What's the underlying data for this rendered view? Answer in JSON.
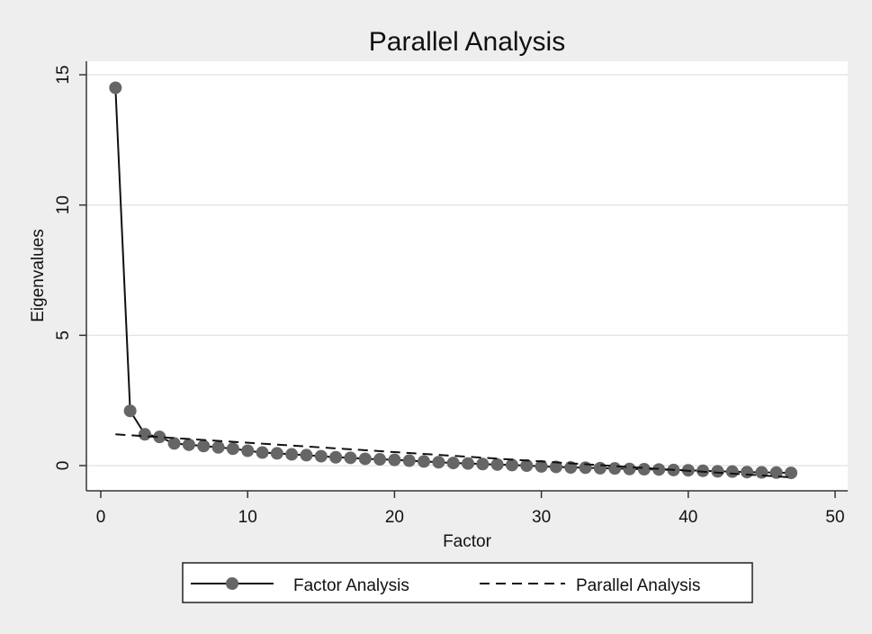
{
  "chart_data": {
    "type": "line",
    "title": "Parallel Analysis",
    "xlabel": "Factor",
    "ylabel": "Eigenvalues",
    "xlim": [
      0,
      50
    ],
    "ylim": [
      -1,
      15.5
    ],
    "xticks": [
      0,
      10,
      20,
      30,
      40,
      50
    ],
    "yticks": [
      0,
      5,
      10,
      15
    ],
    "grid": "horizontal",
    "legend_position": "bottom",
    "colors": {
      "background": "#eeeeee",
      "plot_background": "#ffffff",
      "marker": "#666666",
      "line": "#111111",
      "grid": "#e5e5e5"
    },
    "series": [
      {
        "name": "Factor Analysis",
        "style": "solid-with-markers",
        "x": [
          1,
          2,
          3,
          4,
          5,
          6,
          7,
          8,
          9,
          10,
          11,
          12,
          13,
          14,
          15,
          16,
          17,
          18,
          19,
          20,
          21,
          22,
          23,
          24,
          25,
          26,
          27,
          28,
          29,
          30,
          31,
          32,
          33,
          34,
          35,
          36,
          37,
          38,
          39,
          40,
          41,
          42,
          43,
          44,
          45,
          46,
          47
        ],
        "y": [
          14.5,
          2.1,
          1.2,
          1.1,
          0.85,
          0.8,
          0.75,
          0.7,
          0.65,
          0.57,
          0.5,
          0.47,
          0.43,
          0.4,
          0.36,
          0.32,
          0.3,
          0.26,
          0.24,
          0.22,
          0.19,
          0.16,
          0.13,
          0.1,
          0.08,
          0.06,
          0.04,
          0.02,
          0.0,
          -0.03,
          -0.05,
          -0.07,
          -0.08,
          -0.1,
          -0.11,
          -0.13,
          -0.14,
          -0.15,
          -0.17,
          -0.18,
          -0.2,
          -0.22,
          -0.23,
          -0.25,
          -0.26,
          -0.27,
          -0.28
        ]
      },
      {
        "name": "Parallel Analysis",
        "style": "dashed",
        "x": [
          1,
          47
        ],
        "y": [
          1.2,
          -0.45
        ]
      }
    ]
  }
}
